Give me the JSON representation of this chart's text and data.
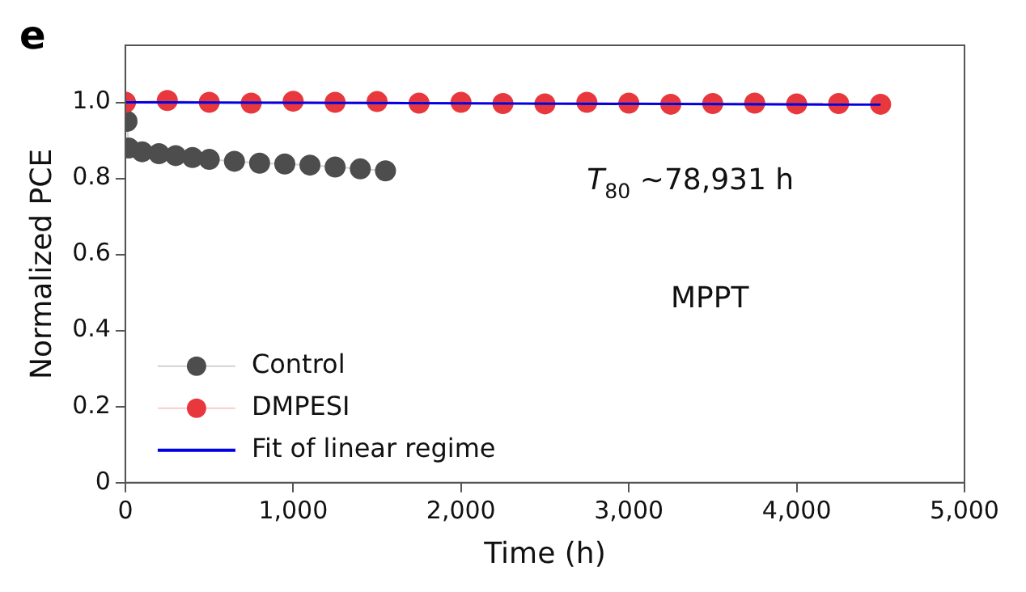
{
  "chart_data": {
    "type": "line",
    "title": "e",
    "xlabel": "Time (h)",
    "ylabel": "Normalized PCE",
    "xlim": [
      0,
      5000
    ],
    "xticks": [
      0,
      {
        "value": 1000,
        "label": "1,000"
      },
      {
        "value": 2000,
        "label": "2,000"
      },
      {
        "value": 3000,
        "label": "3,000"
      },
      {
        "value": 4000,
        "label": "4,000"
      },
      {
        "value": 5000,
        "label": "5,000"
      }
    ],
    "ylim": [
      0,
      1.15
    ],
    "yticks": [
      0,
      0.2,
      0.4,
      0.6,
      0.8,
      {
        "value": 1,
        "label": "1.0"
      }
    ],
    "grid": false,
    "legend": "bottom left",
    "annotations": [
      "T$_{80}$ ~78,931 h",
      "MPPT"
    ],
    "series": [
      {
        "name": "Control",
        "color": "#4d4d4d",
        "marker": "circle",
        "x": [
          0,
          10,
          20,
          100,
          200,
          300,
          400,
          500,
          650,
          800,
          950,
          1100,
          1250,
          1400,
          1550
        ],
        "values": [
          1.0,
          0.95,
          0.88,
          0.87,
          0.865,
          0.86,
          0.855,
          0.85,
          0.845,
          0.84,
          0.838,
          0.835,
          0.83,
          0.825,
          0.82
        ]
      },
      {
        "name": "DMPESI",
        "color": "#e8383d",
        "marker": "circle",
        "x": [
          0,
          250,
          500,
          750,
          1000,
          1250,
          1500,
          1750,
          2000,
          2250,
          2500,
          2750,
          3000,
          3250,
          3500,
          3750,
          4000,
          4250,
          4500
        ],
        "values": [
          1.0,
          1.005,
          1.0,
          0.998,
          1.003,
          1.0,
          1.002,
          0.998,
          1.0,
          0.997,
          0.996,
          1.0,
          0.998,
          0.995,
          0.997,
          0.998,
          0.996,
          0.997,
          0.995
        ]
      },
      {
        "name": "Fit of linear regime",
        "color": "#0000e0",
        "marker": "none",
        "x": [
          0,
          4500
        ],
        "values": [
          1.0,
          0.994
        ]
      }
    ]
  }
}
